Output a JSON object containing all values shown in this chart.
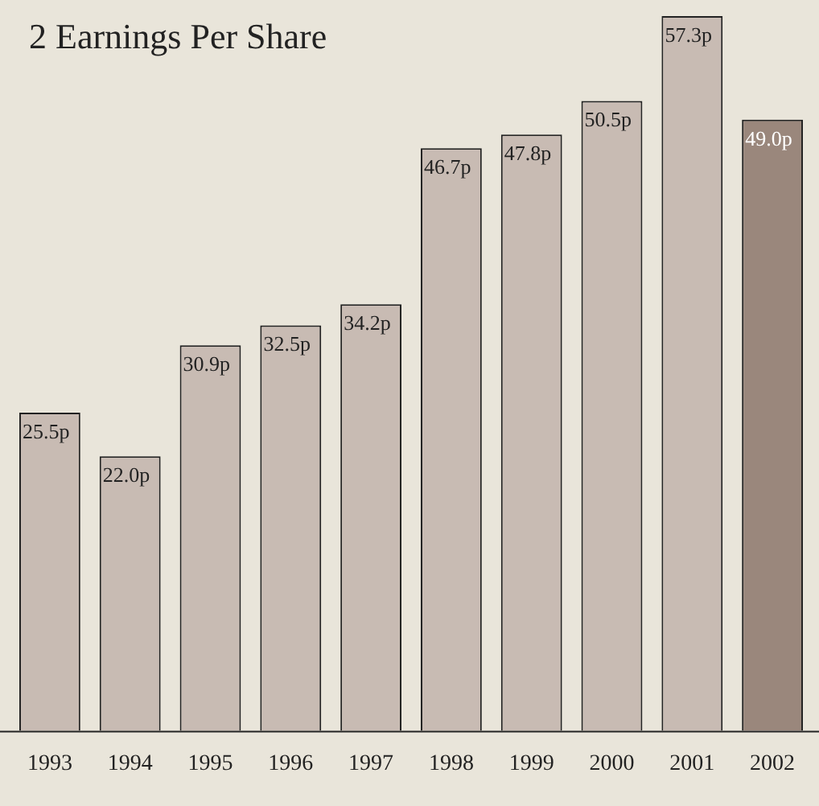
{
  "chart_data": {
    "type": "bar",
    "title": "2 Earnings Per Share",
    "categories": [
      "1993",
      "1994",
      "1995",
      "1996",
      "1997",
      "1998",
      "1999",
      "2000",
      "2001",
      "2002"
    ],
    "values": [
      25.5,
      22.0,
      30.9,
      32.5,
      34.2,
      46.7,
      47.8,
      50.5,
      57.3,
      49.0
    ],
    "colors": [
      "#c8bbb3",
      "#c8bbb3",
      "#c8bbb3",
      "#c8bbb3",
      "#c8bbb3",
      "#c8bbb3",
      "#c8bbb3",
      "#c8bbb3",
      "#c8bbb3",
      "#9a877c"
    ],
    "value_labels": [
      "25.5p",
      "22.0p",
      "30.9p",
      "32.5p",
      "34.2p",
      "46.7p",
      "47.8p",
      "50.5p",
      "57.3p",
      "49.0p"
    ],
    "grid": false,
    "legend": false
  }
}
